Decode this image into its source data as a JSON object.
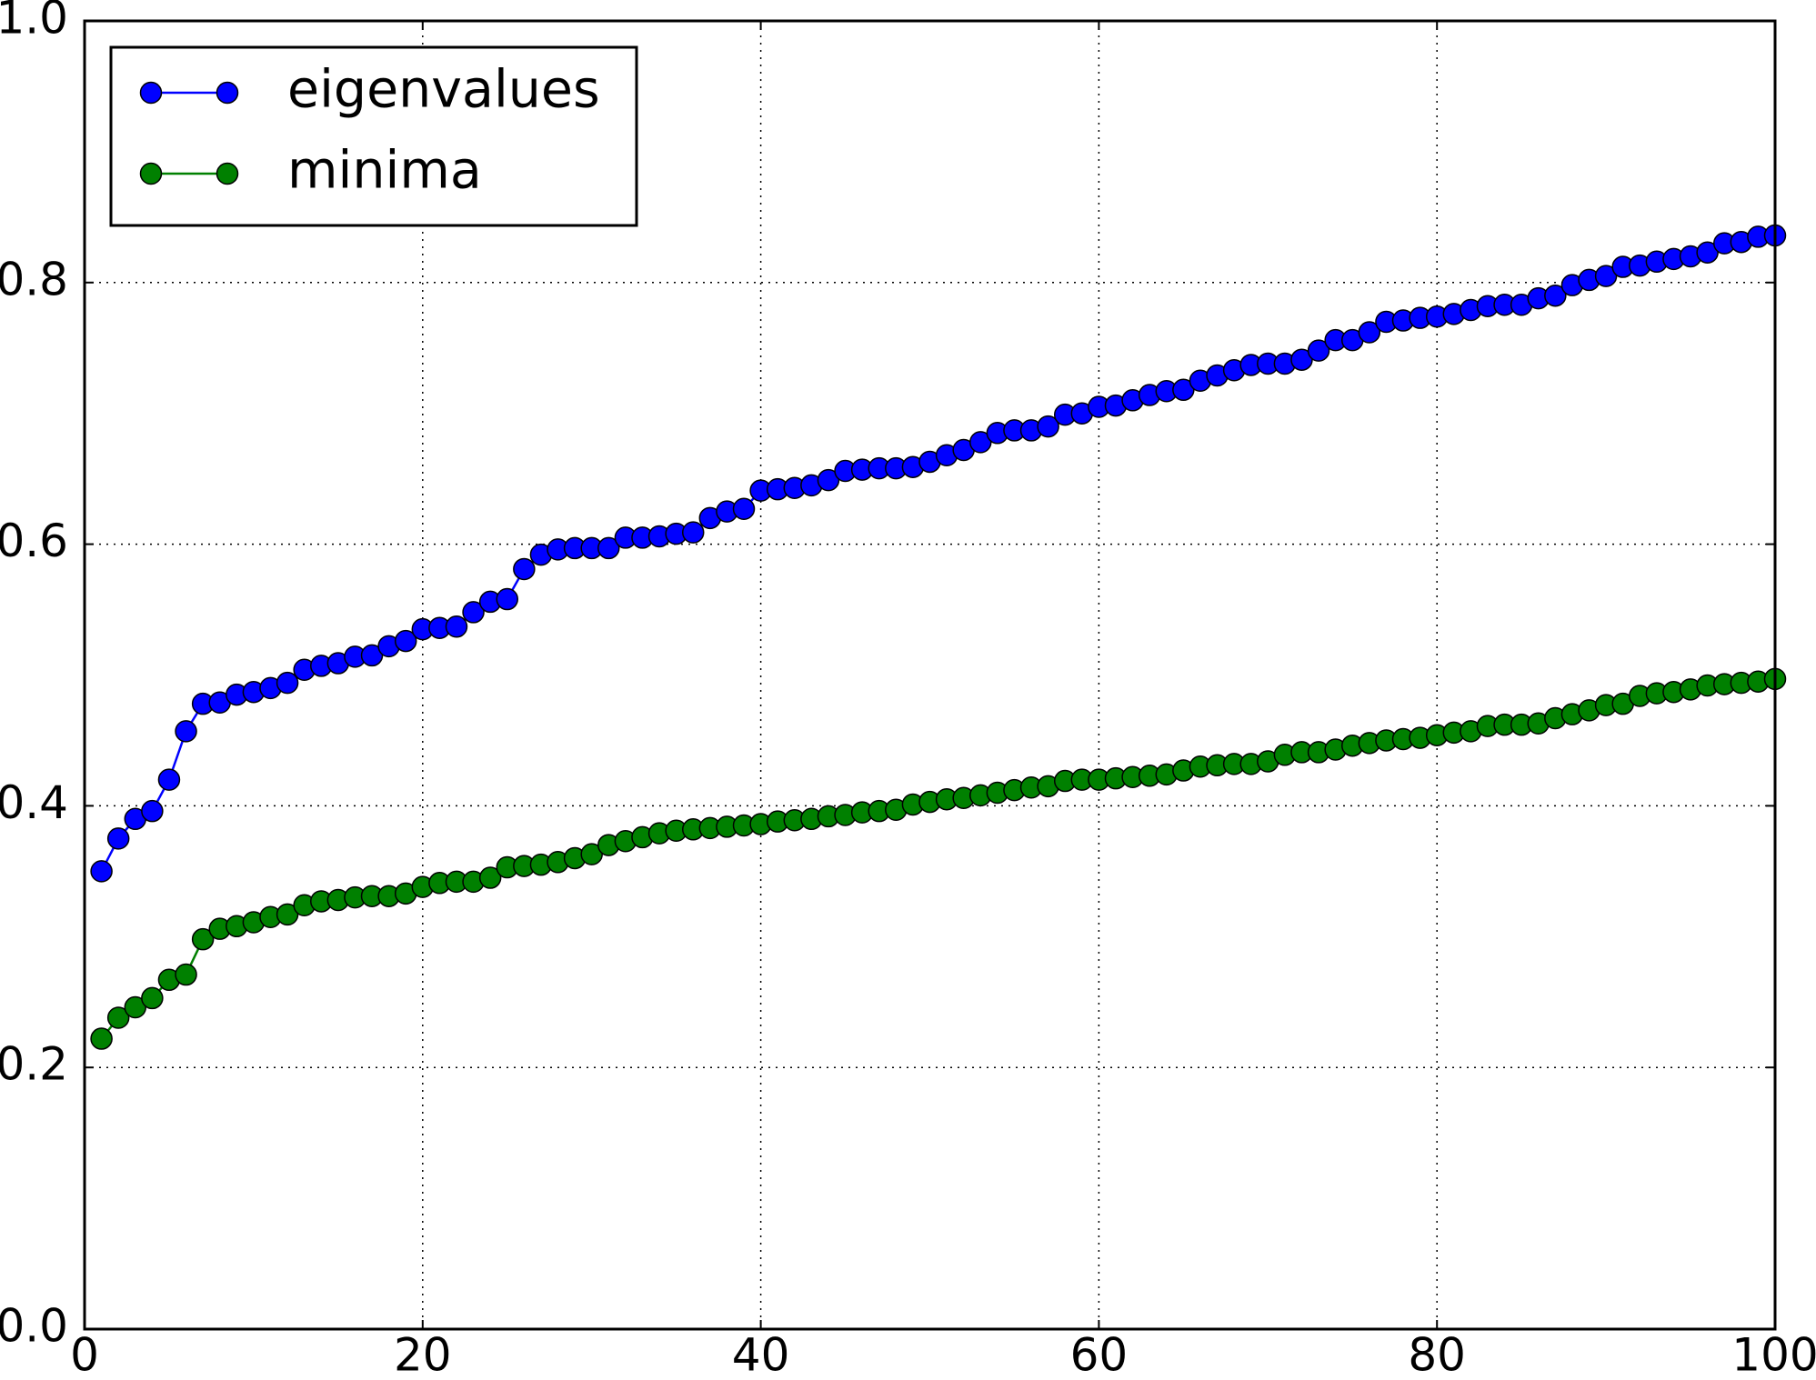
{
  "chart_data": {
    "type": "line",
    "x": [
      1,
      2,
      3,
      4,
      5,
      6,
      7,
      8,
      9,
      10,
      11,
      12,
      13,
      14,
      15,
      16,
      17,
      18,
      19,
      20,
      21,
      22,
      23,
      24,
      25,
      26,
      27,
      28,
      29,
      30,
      31,
      32,
      33,
      34,
      35,
      36,
      37,
      38,
      39,
      40,
      41,
      42,
      43,
      44,
      45,
      46,
      47,
      48,
      49,
      50,
      51,
      52,
      53,
      54,
      55,
      56,
      57,
      58,
      59,
      60,
      61,
      62,
      63,
      64,
      65,
      66,
      67,
      68,
      69,
      70,
      71,
      72,
      73,
      74,
      75,
      76,
      77,
      78,
      79,
      80,
      81,
      82,
      83,
      84,
      85,
      86,
      87,
      88,
      89,
      90,
      91,
      92,
      93,
      94,
      95,
      96,
      97,
      98,
      99,
      100
    ],
    "series": [
      {
        "name": "eigenvalues",
        "color": "#0000ff",
        "values": [
          0.35,
          0.375,
          0.39,
          0.396,
          0.42,
          0.457,
          0.478,
          0.479,
          0.485,
          0.487,
          0.49,
          0.494,
          0.504,
          0.507,
          0.509,
          0.514,
          0.515,
          0.522,
          0.526,
          0.535,
          0.536,
          0.537,
          0.548,
          0.556,
          0.558,
          0.581,
          0.592,
          0.596,
          0.597,
          0.597,
          0.597,
          0.605,
          0.605,
          0.606,
          0.608,
          0.609,
          0.62,
          0.625,
          0.627,
          0.641,
          0.642,
          0.643,
          0.645,
          0.649,
          0.656,
          0.657,
          0.658,
          0.658,
          0.659,
          0.663,
          0.668,
          0.672,
          0.678,
          0.685,
          0.687,
          0.687,
          0.69,
          0.699,
          0.7,
          0.705,
          0.706,
          0.71,
          0.714,
          0.717,
          0.718,
          0.725,
          0.729,
          0.733,
          0.737,
          0.738,
          0.738,
          0.741,
          0.748,
          0.756,
          0.756,
          0.762,
          0.77,
          0.771,
          0.773,
          0.774,
          0.776,
          0.779,
          0.782,
          0.783,
          0.783,
          0.788,
          0.79,
          0.798,
          0.802,
          0.805,
          0.812,
          0.813,
          0.816,
          0.818,
          0.82,
          0.823,
          0.83,
          0.831,
          0.835,
          0.836
        ]
      },
      {
        "name": "minima",
        "color": "#008000",
        "values": [
          0.222,
          0.238,
          0.246,
          0.253,
          0.267,
          0.271,
          0.298,
          0.306,
          0.308,
          0.311,
          0.315,
          0.317,
          0.324,
          0.327,
          0.328,
          0.33,
          0.331,
          0.331,
          0.333,
          0.338,
          0.341,
          0.342,
          0.342,
          0.345,
          0.353,
          0.354,
          0.355,
          0.357,
          0.36,
          0.363,
          0.37,
          0.373,
          0.376,
          0.379,
          0.381,
          0.382,
          0.383,
          0.384,
          0.385,
          0.386,
          0.388,
          0.389,
          0.39,
          0.392,
          0.393,
          0.395,
          0.396,
          0.397,
          0.401,
          0.403,
          0.405,
          0.406,
          0.408,
          0.41,
          0.412,
          0.414,
          0.415,
          0.419,
          0.42,
          0.42,
          0.421,
          0.422,
          0.423,
          0.424,
          0.427,
          0.43,
          0.431,
          0.432,
          0.432,
          0.434,
          0.439,
          0.441,
          0.441,
          0.443,
          0.446,
          0.448,
          0.45,
          0.451,
          0.452,
          0.454,
          0.456,
          0.457,
          0.461,
          0.462,
          0.462,
          0.463,
          0.467,
          0.47,
          0.473,
          0.477,
          0.478,
          0.484,
          0.486,
          0.487,
          0.489,
          0.492,
          0.493,
          0.494,
          0.495,
          0.497
        ]
      }
    ],
    "xlim": [
      0,
      100
    ],
    "xticks": [
      0,
      20,
      40,
      60,
      80,
      100
    ],
    "ylim": [
      0,
      1
    ],
    "yticks": [
      {
        "value": 0,
        "label": "0.0"
      },
      0.2,
      0.4,
      0.6,
      0.8,
      {
        "value": 1,
        "label": "1.0"
      }
    ],
    "grid": true,
    "legend": "upper left"
  }
}
